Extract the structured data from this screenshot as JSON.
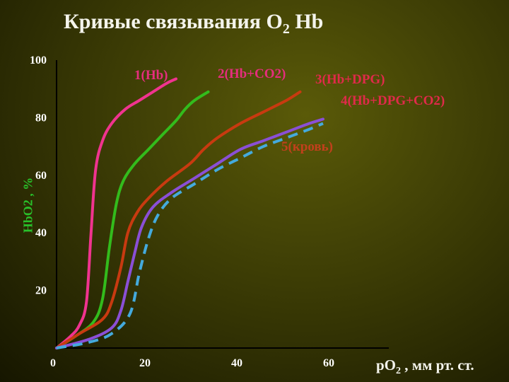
{
  "title": {
    "text": "Кривые связывания O",
    "sub": "2",
    "tail": " Hb"
  },
  "axes": {
    "ylabel": "HbO2 , %",
    "xlabel_main": "pO",
    "xlabel_sub": "2",
    "xlabel_tail": " , мм рт. ст."
  },
  "chart_data": {
    "type": "line",
    "title": "Кривые связывания O2 Hb",
    "xlabel": "pO2 , мм рт. ст.",
    "ylabel": "HbO2 , %",
    "xlim": [
      0,
      70
    ],
    "ylim": [
      0,
      100
    ],
    "x_ticks": [
      0,
      20,
      40,
      60
    ],
    "y_ticks": [
      20,
      40,
      60,
      80,
      100
    ],
    "grid": false,
    "series": [
      {
        "name": "1(Hb)",
        "color": "#f0338f",
        "dash": false,
        "points": [
          [
            0,
            0
          ],
          [
            3,
            4
          ],
          [
            5,
            8
          ],
          [
            6.5,
            16
          ],
          [
            7.5,
            40
          ],
          [
            8.5,
            62
          ],
          [
            10,
            72
          ],
          [
            12,
            78
          ],
          [
            15,
            83
          ],
          [
            18,
            86
          ],
          [
            21,
            89
          ],
          [
            24,
            92
          ],
          [
            26,
            93.5
          ]
        ]
      },
      {
        "name": "2(Hb+CO2)",
        "color": "#33bb1c",
        "dash": false,
        "points": [
          [
            0,
            0
          ],
          [
            4,
            4
          ],
          [
            8,
            9
          ],
          [
            10,
            17
          ],
          [
            11.5,
            35
          ],
          [
            13,
            50
          ],
          [
            14.5,
            58
          ],
          [
            17,
            64
          ],
          [
            20,
            69
          ],
          [
            23,
            74
          ],
          [
            26,
            79
          ],
          [
            28,
            83
          ],
          [
            30,
            86
          ],
          [
            33,
            89
          ]
        ]
      },
      {
        "name": "3(Hb+DPG)",
        "color": "#c83a10",
        "dash": false,
        "points": [
          [
            0,
            0
          ],
          [
            5,
            5
          ],
          [
            10,
            10
          ],
          [
            12,
            16
          ],
          [
            14,
            28
          ],
          [
            15.5,
            40
          ],
          [
            17.5,
            47
          ],
          [
            20,
            52
          ],
          [
            24,
            58
          ],
          [
            29,
            64
          ],
          [
            32,
            69
          ],
          [
            35,
            73
          ],
          [
            40,
            78
          ],
          [
            45,
            82
          ],
          [
            50,
            86
          ],
          [
            53,
            89
          ]
        ]
      },
      {
        "name": "4(Hb+DPG+CO2)",
        "color": "#8a4fd6",
        "dash": false,
        "points": [
          [
            0,
            0
          ],
          [
            7,
            3
          ],
          [
            12,
            7
          ],
          [
            14,
            13
          ],
          [
            15.5,
            23
          ],
          [
            17,
            33
          ],
          [
            18.5,
            42
          ],
          [
            21,
            49
          ],
          [
            25,
            54
          ],
          [
            30,
            59
          ],
          [
            35,
            64
          ],
          [
            40,
            69
          ],
          [
            45,
            72
          ],
          [
            50,
            75
          ],
          [
            55,
            78
          ],
          [
            58,
            79.5
          ]
        ]
      },
      {
        "name": "5(кровь)",
        "color": "#44aadd",
        "dash": true,
        "points": [
          [
            0,
            0
          ],
          [
            7,
            2
          ],
          [
            12,
            5
          ],
          [
            16,
            12
          ],
          [
            18,
            26
          ],
          [
            20,
            38
          ],
          [
            22,
            46
          ],
          [
            25,
            52
          ],
          [
            30,
            57
          ],
          [
            35,
            62
          ],
          [
            40,
            66
          ],
          [
            45,
            70
          ],
          [
            50,
            73
          ],
          [
            55,
            76
          ],
          [
            58,
            78
          ]
        ]
      }
    ]
  }
}
